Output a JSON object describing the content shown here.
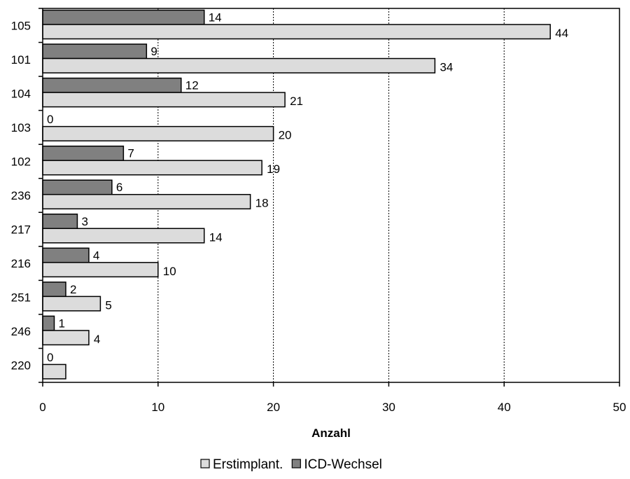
{
  "chart_data": {
    "type": "bar",
    "orientation": "horizontal",
    "categories": [
      "105",
      "101",
      "104",
      "103",
      "102",
      "236",
      "217",
      "216",
      "251",
      "246",
      "220"
    ],
    "series": [
      {
        "name": "ICD-Wechsel",
        "color": "#808080",
        "values": [
          14,
          9,
          12,
          0,
          7,
          6,
          3,
          4,
          2,
          1,
          0
        ],
        "labels": [
          "14",
          "9",
          "12",
          "0",
          "7",
          "6",
          "3",
          "4",
          "2",
          "1",
          "0"
        ]
      },
      {
        "name": "Erstimplant.",
        "color": "#dcdcdc",
        "values": [
          44,
          34,
          21,
          20,
          19,
          18,
          14,
          10,
          5,
          4,
          2
        ],
        "labels": [
          "44",
          "34",
          "21",
          "20",
          "19",
          "18",
          "14",
          "10",
          "5",
          "4",
          ""
        ]
      }
    ],
    "xlabel": "Anzahl",
    "ylabel": "",
    "title": "",
    "xlim": [
      0,
      50
    ],
    "xticks": [
      0,
      10,
      20,
      30,
      40,
      50
    ],
    "grid": "vertical-dashed",
    "legend_position": "bottom",
    "legend_order": [
      "Erstimplant.",
      "ICD-Wechsel"
    ]
  }
}
